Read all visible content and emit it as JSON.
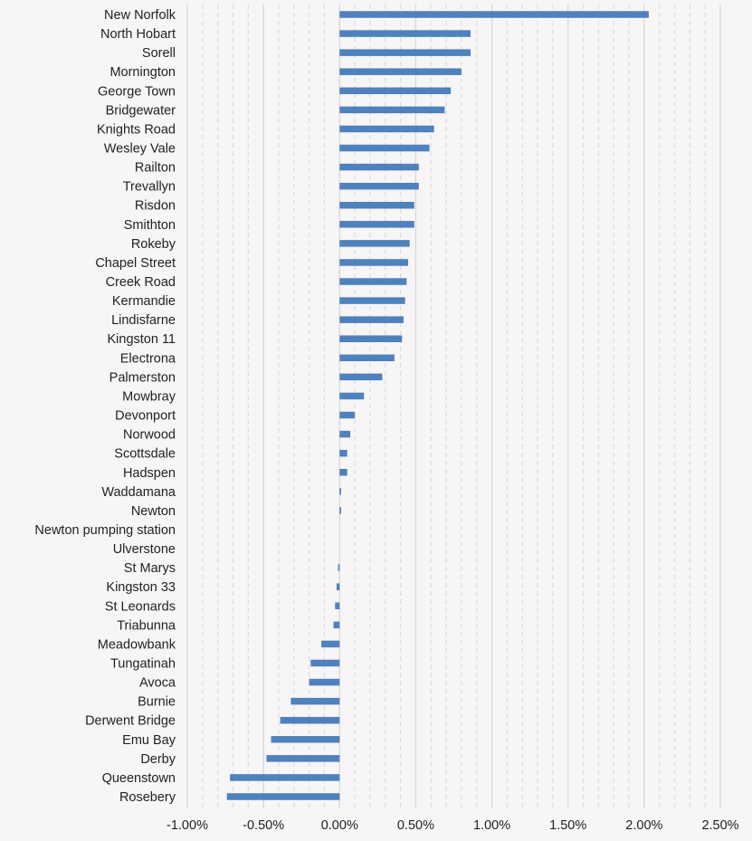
{
  "chart_data": {
    "type": "bar",
    "orientation": "horizontal",
    "title": "",
    "xlabel": "",
    "ylabel": "",
    "xlim": [
      -1.0,
      2.5
    ],
    "x_ticks": [
      "-1.00%",
      "-0.50%",
      "0.00%",
      "0.50%",
      "1.00%",
      "1.50%",
      "2.00%",
      "2.50%"
    ],
    "x_tick_values": [
      -1.0,
      -0.5,
      0.0,
      0.5,
      1.0,
      1.5,
      2.0,
      2.5
    ],
    "unit": "%",
    "grid": "vertical major solid, minor dashed",
    "bar_color": "#4f81bd",
    "categories": [
      "New Norfolk",
      "North Hobart",
      "Sorell",
      "Mornington",
      "George Town",
      "Bridgewater",
      "Knights Road",
      "Wesley Vale",
      "Railton",
      "Trevallyn",
      "Risdon",
      "Smithton",
      "Rokeby",
      "Chapel Street",
      "Creek Road",
      "Kermandie",
      "Lindisfarne",
      "Kingston 11",
      "Electrona",
      "Palmerston",
      "Mowbray",
      "Devonport",
      "Norwood",
      "Scottsdale",
      "Hadspen",
      "Waddamana",
      "Newton",
      "Newton pumping station",
      "Ulverstone",
      "St Marys",
      "Kingston 33",
      "St Leonards",
      "Triabunna",
      "Meadowbank",
      "Tungatinah",
      "Avoca",
      "Burnie",
      "Derwent Bridge",
      "Emu Bay",
      "Derby",
      "Queenstown",
      "Rosebery"
    ],
    "values": [
      2.03,
      0.86,
      0.86,
      0.8,
      0.73,
      0.69,
      0.62,
      0.59,
      0.52,
      0.52,
      0.49,
      0.49,
      0.46,
      0.45,
      0.44,
      0.43,
      0.42,
      0.41,
      0.36,
      0.28,
      0.16,
      0.1,
      0.07,
      0.05,
      0.05,
      0.01,
      0.01,
      0.0,
      0.0,
      -0.01,
      -0.02,
      -0.03,
      -0.04,
      -0.12,
      -0.19,
      -0.2,
      -0.32,
      -0.39,
      -0.45,
      -0.48,
      -0.72,
      -0.74
    ]
  }
}
